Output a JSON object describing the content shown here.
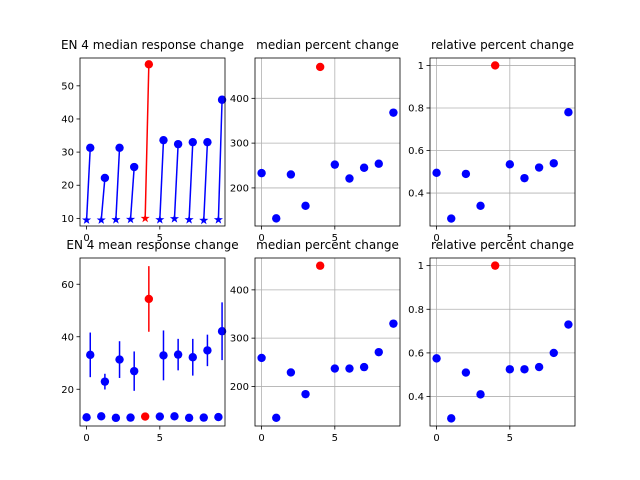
{
  "chart_data": [
    {
      "type": "scatter",
      "title": "EN 4 median response change",
      "grid": false,
      "xlim": [
        -0.45,
        9.45
      ],
      "ylim": [
        7.7,
        58.4
      ],
      "xticks": [
        0,
        5
      ],
      "yticks": [
        10,
        20,
        30,
        40,
        50
      ],
      "before": [
        9.5,
        9.5,
        9.6,
        9.7,
        10.0,
        9.6,
        9.9,
        9.6,
        9.4,
        9.6
      ],
      "after": [
        31.3,
        22.2,
        31.3,
        25.5,
        56.5,
        33.6,
        32.4,
        33.0,
        33.0,
        45.8
      ],
      "highlight_index": 4,
      "colors": {
        "normal": "#0000ff",
        "highlight": "#ff0000"
      }
    },
    {
      "type": "scatter",
      "title": "median percent change",
      "grid": true,
      "xlim": [
        -0.45,
        9.45
      ],
      "ylim": [
        115,
        490
      ],
      "xticks": [
        0,
        5
      ],
      "yticks": [
        200,
        300,
        400
      ],
      "x": [
        0,
        1,
        2,
        3,
        4,
        5,
        6,
        7,
        8,
        9
      ],
      "y": [
        233,
        132,
        230,
        160,
        470,
        252,
        221,
        245,
        254,
        368
      ],
      "highlight_index": 4,
      "colors": {
        "normal": "#0000ff",
        "highlight": "#ff0000"
      }
    },
    {
      "type": "scatter",
      "title": "relative percent change",
      "grid": true,
      "xlim": [
        -0.45,
        9.45
      ],
      "ylim": [
        0.245,
        1.035
      ],
      "xticks": [
        0,
        5
      ],
      "yticks": [
        0.4,
        0.6,
        0.8,
        1.0
      ],
      "x": [
        0,
        1,
        2,
        3,
        4,
        5,
        6,
        7,
        8,
        9
      ],
      "y": [
        0.495,
        0.28,
        0.49,
        0.34,
        1.0,
        0.535,
        0.47,
        0.52,
        0.54,
        0.78
      ],
      "highlight_index": 4,
      "colors": {
        "normal": "#0000ff",
        "highlight": "#ff0000"
      }
    },
    {
      "type": "scatter",
      "title": "EN 4 mean response change",
      "grid": false,
      "xlim": [
        -0.45,
        9.45
      ],
      "ylim": [
        6,
        70
      ],
      "xticks": [
        0,
        5
      ],
      "yticks": [
        20,
        40,
        60
      ],
      "before": [
        9.3,
        9.7,
        9.1,
        9.2,
        9.6,
        9.6,
        9.7,
        9.1,
        9.2,
        9.4
      ],
      "after": [
        33.1,
        22.9,
        31.3,
        26.9,
        54.4,
        32.9,
        33.2,
        32.2,
        34.8,
        42.1
      ],
      "after_err": [
        8.5,
        3.0,
        7.0,
        7.5,
        12.5,
        9.5,
        6.0,
        7.0,
        6.0,
        11.0
      ],
      "highlight_index": 4,
      "colors": {
        "normal": "#0000ff",
        "highlight": "#ff0000"
      }
    },
    {
      "type": "scatter",
      "title": "median percent change",
      "grid": true,
      "xlim": [
        -0.45,
        9.45
      ],
      "ylim": [
        118,
        466
      ],
      "xticks": [
        0,
        5
      ],
      "yticks": [
        200,
        300,
        400
      ],
      "x": [
        0,
        1,
        2,
        3,
        4,
        5,
        6,
        7,
        8,
        9
      ],
      "y": [
        259,
        135,
        229,
        184,
        450,
        237,
        237,
        240,
        271,
        330
      ],
      "highlight_index": 4,
      "colors": {
        "normal": "#0000ff",
        "highlight": "#ff0000"
      }
    },
    {
      "type": "scatter",
      "title": "relative percent change",
      "grid": true,
      "xlim": [
        -0.45,
        9.45
      ],
      "ylim": [
        0.265,
        1.035
      ],
      "xticks": [
        0,
        5
      ],
      "yticks": [
        0.4,
        0.6,
        0.8,
        1.0
      ],
      "x": [
        0,
        1,
        2,
        3,
        4,
        5,
        6,
        7,
        8,
        9
      ],
      "y": [
        0.575,
        0.3,
        0.51,
        0.41,
        1.0,
        0.525,
        0.525,
        0.535,
        0.6,
        0.73
      ],
      "highlight_index": 4,
      "colors": {
        "normal": "#0000ff",
        "highlight": "#ff0000"
      }
    }
  ]
}
